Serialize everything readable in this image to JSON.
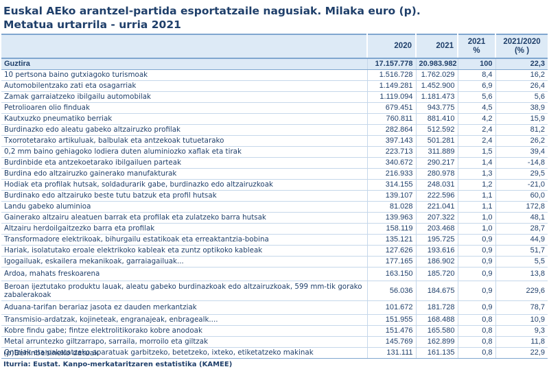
{
  "title": {
    "line1": "Euskal AEko arantzel-partida esportatzaile nagusiak. Milaka euro (p).",
    "line2": "Metatua urtarrila - urria 2021"
  },
  "table": {
    "headers": [
      "",
      "2020",
      "2021",
      "2021\n%",
      "2021/2020\n(% )"
    ],
    "rows": [
      [
        "Guztira",
        "17.157.778",
        "20.983.982",
        "100",
        "22,3"
      ],
      [
        "10 pertsona baino gutxiagoko turismoak",
        "1.516.728",
        "1.762.029",
        "8,4",
        "16,2"
      ],
      [
        "Automobilentzako zati eta osagarriak",
        "1.149.281",
        "1.452.900",
        "6,9",
        "26,4"
      ],
      [
        "Zamak garraiatzeko ibilgailu automobilak",
        "1.119.094",
        "1.181.473",
        "5,6",
        "5,6"
      ],
      [
        "Petrolioaren olio finduak",
        "679.451",
        "943.775",
        "4,5",
        "38,9"
      ],
      [
        "Kautxuzko pneumatiko berriak",
        "760.811",
        "881.410",
        "4,2",
        "15,9"
      ],
      [
        "Burdinazko edo aleatu gabeko altzairuzko profilak",
        "282.864",
        "512.592",
        "2,4",
        "81,2"
      ],
      [
        "Txorrotetarako artikuluak, balbulak eta antzekoak tutuetarako",
        "397.143",
        "501.281",
        "2,4",
        "26,2"
      ],
      [
        "0,2 mm baino gehiagoko lodiera duten aluminiozko xaflak eta tirak",
        "223.713",
        "311.889",
        "1,5",
        "39,4"
      ],
      [
        "Burdinbide eta antzekoetarako ibilgailuen parteak",
        "340.672",
        "290.217",
        "1,4",
        "-14,8"
      ],
      [
        "Burdina edo altzairuzko gainerako manufakturak",
        "216.933",
        "280.978",
        "1,3",
        "29,5"
      ],
      [
        "Hodiak eta profilak hutsak, soldadurarik gabe, burdinazko edo altzairuzkoak",
        "314.155",
        "248.031",
        "1,2",
        "-21,0"
      ],
      [
        "Burdinako edo altzairuko beste tutu batzuk eta profil hutsak",
        "139.107",
        "222.596",
        "1,1",
        "60,0"
      ],
      [
        "Landu gabeko aluminioa",
        "81.028",
        "221.041",
        "1,1",
        "172,8"
      ],
      [
        "Gainerako altzairu aleatuen barrak eta profilak eta zulatzeko barra hutsak",
        "139.963",
        "207.322",
        "1,0",
        "48,1"
      ],
      [
        "Altzairu herdoilgaitzezko barra eta profilak",
        "158.119",
        "203.468",
        "1,0",
        "28,7"
      ],
      [
        "Transformadore elektrikoak, bihurgailu estatikoak eta erreaktantzia-bobina",
        "135.121",
        "195.725",
        "0,9",
        "44,9"
      ],
      [
        "Hariak, isolatutako eroale elektrikoko kableak eta zuntz optikoko kableak",
        "127.626",
        "193.616",
        "0,9",
        "51,7"
      ],
      [
        "Igogailuak, eskailera mekanikoak, garraiagailuak...",
        "177.165",
        "186.902",
        "0,9",
        "5,5"
      ],
      [
        "Ardoa, mahats freskoarena",
        "163.150",
        "185.720",
        "0,9",
        "13,8"
      ],
      [
        "Beroan ijeztutako produktu lauak, aleatu gabeko burdinazkoak edo altzairuzkoak, 599 mm-tik gorako zabalerakoak",
        "56.036",
        "184.675",
        "0,9",
        "229,6"
      ],
      [
        "Aduana-tarifan berariaz jasota ez dauden merkantziak",
        "101.672",
        "181.728",
        "0,9",
        "78,7"
      ],
      [
        "Transmisio-ardatzak, kojineteak, engranajeak, enbragealk....",
        "151.955",
        "168.488",
        "0,8",
        "10,9"
      ],
      [
        "Kobre findu gabe; fintze elektrolitikorako kobre anodoak",
        "151.476",
        "165.580",
        "0,8",
        "9,3"
      ],
      [
        "Metal arruntezko giltzarrapo, sarraila, morroilo eta giltzak",
        "145.769",
        "162.899",
        "0,8",
        "11,8"
      ],
      [
        "Ontziak eta paketatzeko aparatuak garbitzeko, betetzeko, ixteko, etiketatzeko makinak",
        "131.111",
        "161.135",
        "0,8",
        "22,9"
      ]
    ]
  },
  "footnote": "(p)Behinbehineko datuak",
  "source": "Iturria: Eustat. Kanpo-merkataritzaren estatistika (KAMEE)"
}
